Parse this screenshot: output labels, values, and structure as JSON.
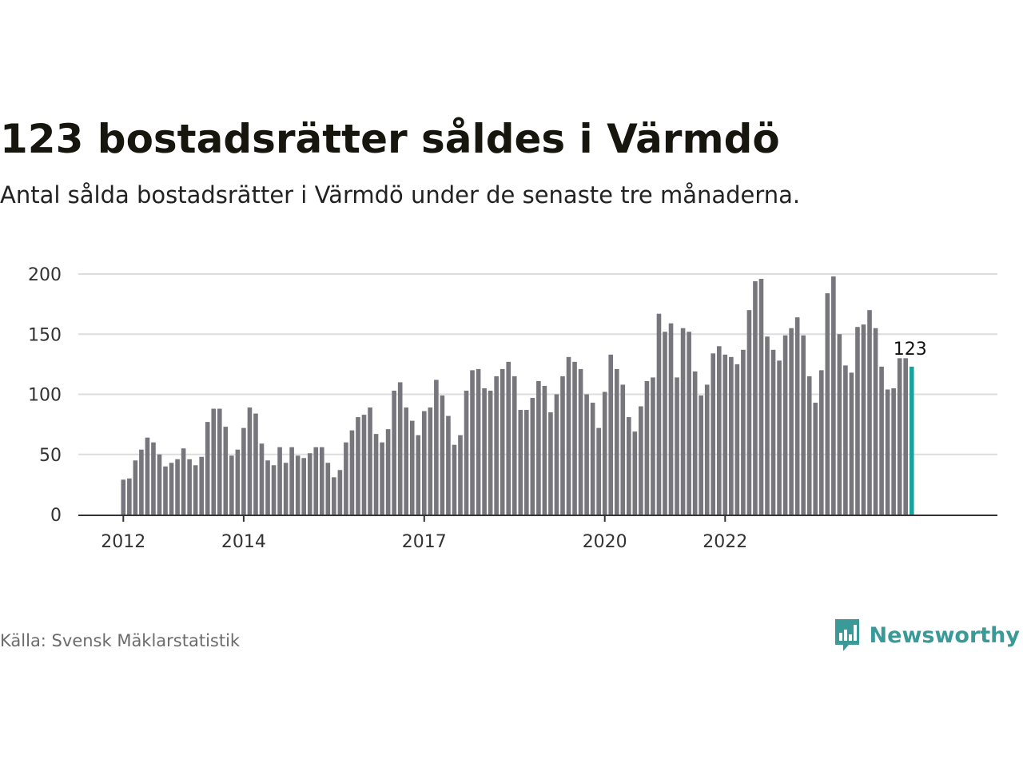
{
  "title": "123 bostadsrätter såldes i Värmdö",
  "subtitle": "Antal sålda bostadsrätter i Värmdö under de senaste tre månaderna.",
  "source": "Källa: Svensk Mäklarstatistik",
  "brand": {
    "name": "Newsworthy",
    "icon": "newsworthy-logo-icon",
    "color": "#3a9a98"
  },
  "colors": {
    "bar": "#76767c",
    "highlight": "#1aa39b",
    "grid": "#dddddd",
    "axis": "#333333"
  },
  "chart_data": {
    "type": "bar",
    "title": "123 bostadsrätter såldes i Värmdö",
    "subtitle": "Antal sålda bostadsrätter i Värmdö under de senaste tre månaderna.",
    "xlabel": "",
    "ylabel": "",
    "ylim": [
      0,
      200
    ],
    "yticks": [
      0,
      50,
      100,
      150,
      200
    ],
    "grid": true,
    "legend": "none",
    "start_month": "2011-12",
    "xticks": [
      {
        "label": "2012",
        "index": 0
      },
      {
        "label": "2014",
        "index": 20
      },
      {
        "label": "2017",
        "index": 50
      },
      {
        "label": "2020",
        "index": 80
      },
      {
        "label": "2022",
        "index": 100
      }
    ],
    "values": [
      29,
      30,
      45,
      54,
      64,
      60,
      50,
      40,
      43,
      46,
      55,
      46,
      41,
      48,
      77,
      88,
      88,
      73,
      49,
      54,
      72,
      89,
      84,
      59,
      45,
      41,
      56,
      43,
      56,
      49,
      47,
      51,
      56,
      56,
      43,
      31,
      37,
      60,
      70,
      81,
      83,
      89,
      67,
      60,
      71,
      103,
      110,
      89,
      78,
      66,
      86,
      89,
      112,
      99,
      82,
      58,
      66,
      103,
      120,
      121,
      105,
      103,
      115,
      121,
      127,
      115,
      87,
      87,
      97,
      111,
      107,
      85,
      100,
      115,
      131,
      127,
      121,
      100,
      93,
      72,
      102,
      133,
      121,
      108,
      81,
      69,
      90,
      111,
      114,
      167,
      152,
      159,
      114,
      155,
      152,
      119,
      99,
      108,
      134,
      140,
      133,
      131,
      125,
      137,
      170,
      194,
      196,
      148,
      137,
      128,
      149,
      155,
      164,
      149,
      115,
      93,
      120,
      184,
      198,
      150,
      124,
      118,
      156,
      158,
      170,
      155,
      123,
      104,
      105,
      130,
      130,
      123
    ],
    "highlight_index": 131,
    "highlight_label": "123"
  }
}
